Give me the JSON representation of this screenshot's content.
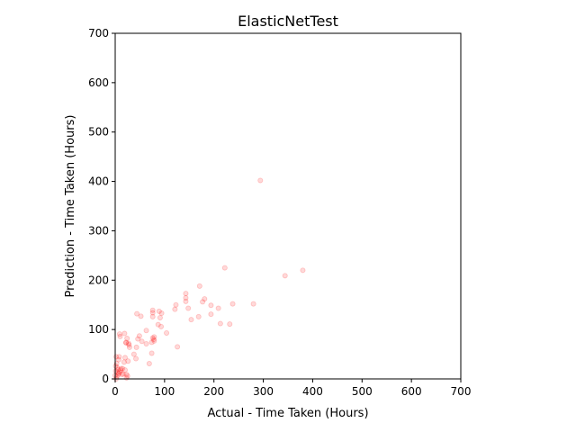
{
  "chart_data": {
    "type": "scatter",
    "title": "ElasticNetTest",
    "xlabel": "Actual - Time Taken (Hours)",
    "ylabel": "Prediction - Time Taken (Hours)",
    "xlim": [
      0,
      700
    ],
    "ylim": [
      0,
      700
    ],
    "xticks": [
      "0",
      "100",
      "200",
      "300",
      "400",
      "500",
      "600",
      "700"
    ],
    "yticks": [
      "0",
      "100",
      "200",
      "300",
      "400",
      "500",
      "600",
      "700"
    ],
    "grid": false,
    "marker_color": "#ff0000",
    "marker_alpha": 0.15,
    "points": [
      [
        294,
        402
      ],
      [
        380,
        220
      ],
      [
        344,
        209
      ],
      [
        222,
        225
      ],
      [
        280,
        152
      ],
      [
        238,
        152
      ],
      [
        232,
        111
      ],
      [
        213,
        112
      ],
      [
        209,
        143
      ],
      [
        194,
        131
      ],
      [
        194,
        149
      ],
      [
        181,
        162
      ],
      [
        177,
        156
      ],
      [
        171,
        188
      ],
      [
        169,
        126
      ],
      [
        154,
        120
      ],
      [
        148,
        143
      ],
      [
        143,
        157
      ],
      [
        143,
        164
      ],
      [
        143,
        173
      ],
      [
        126,
        65
      ],
      [
        123,
        150
      ],
      [
        121,
        141
      ],
      [
        104,
        93
      ],
      [
        94,
        133
      ],
      [
        93,
        106
      ],
      [
        91,
        124
      ],
      [
        87,
        110
      ],
      [
        89,
        137
      ],
      [
        79,
        77
      ],
      [
        79,
        85
      ],
      [
        78,
        80
      ],
      [
        76,
        83
      ],
      [
        76,
        126
      ],
      [
        76,
        134
      ],
      [
        76,
        139
      ],
      [
        74,
        74
      ],
      [
        74,
        52
      ],
      [
        69,
        31
      ],
      [
        63,
        71
      ],
      [
        63,
        98
      ],
      [
        54,
        76
      ],
      [
        52,
        127
      ],
      [
        49,
        87
      ],
      [
        46,
        81
      ],
      [
        44,
        132
      ],
      [
        43,
        64
      ],
      [
        42,
        41
      ],
      [
        38,
        50
      ],
      [
        29,
        64
      ],
      [
        28,
        69
      ],
      [
        27,
        72
      ],
      [
        24,
        82
      ],
      [
        22,
        73
      ],
      [
        22,
        74
      ],
      [
        20,
        43
      ],
      [
        19,
        92
      ],
      [
        18,
        34
      ],
      [
        15,
        21
      ],
      [
        14,
        9
      ],
      [
        10,
        86
      ],
      [
        9,
        91
      ],
      [
        8,
        45
      ],
      [
        7,
        39
      ],
      [
        6,
        19
      ],
      [
        5,
        13
      ],
      [
        4,
        23
      ],
      [
        3,
        31
      ],
      [
        2,
        45
      ],
      [
        1,
        16
      ],
      [
        0,
        7
      ],
      [
        20,
        18
      ],
      [
        23,
        9
      ],
      [
        25,
        6
      ],
      [
        23,
        2
      ],
      [
        26,
        36
      ],
      [
        11,
        18
      ],
      [
        9,
        14
      ],
      [
        6,
        8
      ],
      [
        2,
        0
      ],
      [
        12,
        21
      ],
      [
        16,
        10
      ],
      [
        3,
        4
      ],
      [
        1,
        26
      ],
      [
        7,
        11
      ]
    ]
  }
}
